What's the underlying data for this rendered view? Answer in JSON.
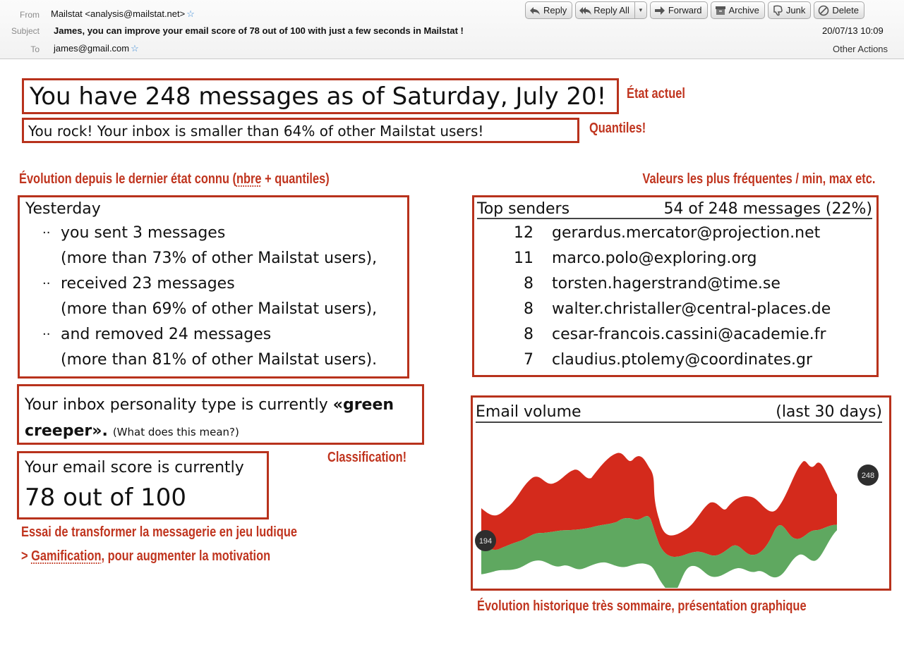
{
  "header": {
    "from_label": "From",
    "from_value": "Mailstat <analysis@mailstat.net>",
    "subject_label": "Subject",
    "subject_value": "James, you can improve your email score of 78 out of 100 with just a few seconds in  Mailstat  !",
    "to_label": "To",
    "to_value": "james@gmail.com",
    "date": "20/07/13 10:09",
    "other_actions": "Other Actions",
    "toolbar": {
      "reply": "Reply",
      "reply_all": "Reply All",
      "reply_all_dropdown": "▾",
      "forward": "Forward",
      "archive": "Archive",
      "junk": "Junk",
      "delete": "Delete"
    },
    "star_glyph": "☆"
  },
  "body": {
    "headline": "You have 248 messages as of Saturday, July 20!",
    "subline": "You rock! Your inbox is smaller than 64% of other Mailstat users!",
    "yesterday": {
      "title": "Yesterday",
      "bullet": "··",
      "items": [
        {
          "line": "you sent 3 messages",
          "detail": "(more than 73% of other Mailstat users),"
        },
        {
          "line": "received 23 messages",
          "detail": "(more than 69% of other Mailstat users),"
        },
        {
          "line": "and removed 24 messages",
          "detail": "(more than 81% of other Mailstat users)."
        }
      ]
    },
    "top_senders": {
      "title": "Top senders",
      "summary": "54 of 248 messages (22%)",
      "rows": [
        {
          "count": "12",
          "email": "gerardus.mercator@projection.net"
        },
        {
          "count": "11",
          "email": "marco.polo@exploring.org"
        },
        {
          "count": "8",
          "email": "torsten.hagerstrand@time.se"
        },
        {
          "count": "8",
          "email": "walter.christaller@central-places.de"
        },
        {
          "count": "8",
          "email": "cesar-francois.cassini@academie.fr"
        },
        {
          "count": "7",
          "email": "claudius.ptolemy@coordinates.gr"
        }
      ]
    },
    "personality": {
      "prefix": "Your inbox personality type is currently ",
      "type_start": "«green",
      "type_end": "creeper».",
      "link": "(What does this mean?)"
    },
    "score": {
      "line1": "Your email score is currently",
      "line2": "78 out of 100"
    },
    "volume": {
      "title": "Email volume",
      "range": "(last 30 days)",
      "start_label": "194",
      "end_label": "248"
    }
  },
  "annotations": {
    "etat_actuel": "État actuel",
    "quantiles": "Quantiles!",
    "evolution_prefix": "Évolution depuis le dernier état connu (",
    "evolution_word": "nbre",
    "evolution_suffix": " + quantiles)",
    "valeurs": "Valeurs les plus fréquentes / min, max etc.",
    "classification": "Classification!",
    "gamif_line1": "Essai de transformer la messagerie en jeu ludique",
    "gamif_line2_prefix": "> ",
    "gamif_line2_word": "Gamification",
    "gamif_line2_suffix": ", pour augmenter la motivation",
    "historique": "Évolution historique très sommaire, présentation graphique"
  },
  "colors": {
    "annotation_red": "#c0351f",
    "box_border": "#b8321c",
    "chart_red": "#d42a1c",
    "chart_green": "#5fa860",
    "badge": "#2e2e2e"
  }
}
